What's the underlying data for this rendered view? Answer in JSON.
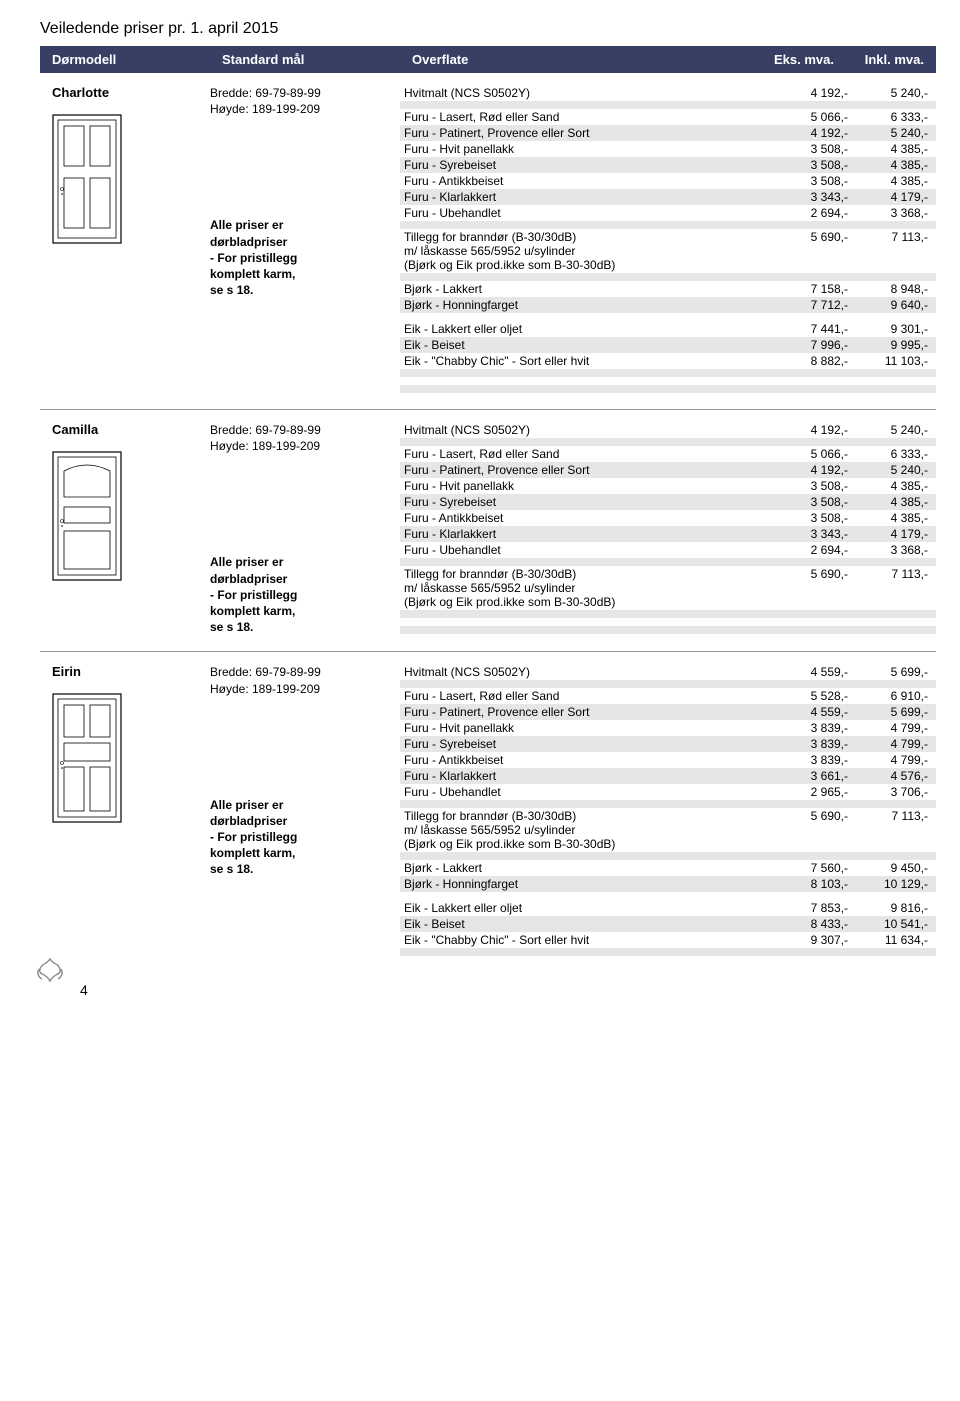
{
  "page_title": "Veiledende priser pr. 1. april 2015",
  "page_number": "4",
  "header": {
    "c1": "Dørmodell",
    "c2": "Standard mål",
    "c3": "Overflate",
    "c4": "Eks. mva.",
    "c5": "Inkl. mva."
  },
  "note_text_bold": "Alle priser er\ndørbladpriser\n- For pristillegg\nkomplett karm,\nse s 18.",
  "dims_text": "Bredde: 69-79-89-99\nHøyde: 189-199-209",
  "sections": [
    {
      "model": "Charlotte",
      "door_type": "charlotte",
      "rows": [
        {
          "label": "Hvitmalt  (NCS S0502Y)",
          "p1": "4 192,-",
          "p2": "5 240,-",
          "striped": false
        },
        {
          "spacer": true,
          "striped": true
        },
        {
          "label": "Furu - Lasert, Rød eller Sand",
          "p1": "5 066,-",
          "p2": "6 333,-",
          "striped": false
        },
        {
          "label": "Furu - Patinert, Provence eller Sort",
          "p1": "4 192,-",
          "p2": "5 240,-",
          "striped": true
        },
        {
          "label": "Furu - Hvit panellakk",
          "p1": "3 508,-",
          "p2": "4 385,-",
          "striped": false
        },
        {
          "label": "Furu - Syrebeiset",
          "p1": "3 508,-",
          "p2": "4 385,-",
          "striped": true
        },
        {
          "label": "Furu - Antikkbeiset",
          "p1": "3 508,-",
          "p2": "4 385,-",
          "striped": false
        },
        {
          "label": "Furu - Klarlakkert",
          "p1": "3 343,-",
          "p2": "4 179,-",
          "striped": true
        },
        {
          "label": "Furu - Ubehandlet",
          "p1": "2 694,-",
          "p2": "3 368,-",
          "striped": false
        },
        {
          "spacer": true,
          "striped": true
        },
        {
          "label": "Tillegg for branndør  (B-30/30dB)\nm/ låskasse 565/5952 u/sylinder\n(Bjørk og Eik prod.ikke som B-30-30dB)",
          "p1": "5 690,-",
          "p2": "7 113,-",
          "striped": false,
          "multi": true
        },
        {
          "spacer": true,
          "striped": true
        },
        {
          "label": "Bjørk - Lakkert",
          "p1": "7 158,-",
          "p2": "8 948,-",
          "striped": false
        },
        {
          "label": "Bjørk - Honningfarget",
          "p1": "7 712,-",
          "p2": "9 640,-",
          "striped": true
        },
        {
          "spacer": true,
          "striped": false
        },
        {
          "label": "Eik - Lakkert eller oljet",
          "p1": "7 441,-",
          "p2": "9 301,-",
          "striped": false
        },
        {
          "label": "Eik - Beiset",
          "p1": "7 996,-",
          "p2": "9 995,-",
          "striped": true
        },
        {
          "label": "Eik - \"Chabby Chic\" - Sort eller hvit",
          "p1": "8 882,-",
          "p2": "11 103,-",
          "striped": false
        },
        {
          "spacer": true,
          "striped": true
        },
        {
          "spacer": true,
          "striped": false
        },
        {
          "spacer": true,
          "striped": true
        }
      ]
    },
    {
      "model": "Camilla",
      "door_type": "camilla",
      "rows": [
        {
          "label": "Hvitmalt (NCS S0502Y)",
          "p1": "4 192,-",
          "p2": "5 240,-",
          "striped": false
        },
        {
          "spacer": true,
          "striped": true
        },
        {
          "label": "Furu - Lasert, Rød eller Sand",
          "p1": "5 066,-",
          "p2": "6 333,-",
          "striped": false
        },
        {
          "label": "Furu - Patinert, Provence eller Sort",
          "p1": "4 192,-",
          "p2": "5 240,-",
          "striped": true
        },
        {
          "label": "Furu - Hvit panellakk",
          "p1": "3 508,-",
          "p2": "4 385,-",
          "striped": false
        },
        {
          "label": "Furu - Syrebeiset",
          "p1": "3 508,-",
          "p2": "4 385,-",
          "striped": true
        },
        {
          "label": "Furu - Antikkbeiset",
          "p1": "3 508,-",
          "p2": "4 385,-",
          "striped": false
        },
        {
          "label": "Furu - Klarlakkert",
          "p1": "3 343,-",
          "p2": "4 179,-",
          "striped": true
        },
        {
          "label": "Furu - Ubehandlet",
          "p1": "2 694,-",
          "p2": "3 368,-",
          "striped": false
        },
        {
          "spacer": true,
          "striped": true
        },
        {
          "label": "Tillegg for branndør  (B-30/30dB)\nm/ låskasse 565/5952 u/sylinder\n(Bjørk og Eik prod.ikke som B-30-30dB)",
          "p1": "5 690,-",
          "p2": "7 113,-",
          "striped": false,
          "multi": true
        },
        {
          "spacer": true,
          "striped": true
        },
        {
          "spacer": true,
          "striped": false
        },
        {
          "spacer": true,
          "striped": true
        }
      ]
    },
    {
      "model": "Eirin",
      "door_type": "eirin",
      "rows": [
        {
          "label": "Hvitmalt (NCS S0502Y)",
          "p1": "4 559,-",
          "p2": "5 699,-",
          "striped": false
        },
        {
          "spacer": true,
          "striped": true
        },
        {
          "label": "Furu - Lasert, Rød eller Sand",
          "p1": "5 528,-",
          "p2": "6 910,-",
          "striped": false
        },
        {
          "label": "Furu - Patinert, Provence eller Sort",
          "p1": "4 559,-",
          "p2": "5 699,-",
          "striped": true
        },
        {
          "label": "Furu - Hvit panellakk",
          "p1": "3 839,-",
          "p2": "4 799,-",
          "striped": false
        },
        {
          "label": "Furu - Syrebeiset",
          "p1": "3 839,-",
          "p2": "4 799,-",
          "striped": true
        },
        {
          "label": "Furu - Antikkbeiset",
          "p1": "3 839,-",
          "p2": "4 799,-",
          "striped": false
        },
        {
          "label": "Furu - Klarlakkert",
          "p1": "3 661,-",
          "p2": "4 576,-",
          "striped": true
        },
        {
          "label": "Furu - Ubehandlet",
          "p1": "2 965,-",
          "p2": "3 706,-",
          "striped": false
        },
        {
          "spacer": true,
          "striped": true
        },
        {
          "label": "Tillegg for branndør (B-30/30dB)\nm/ låskasse 565/5952 u/sylinder\n(Bjørk og Eik prod.ikke som B-30-30dB)",
          "p1": "5 690,-",
          "p2": "7 113,-",
          "striped": false,
          "multi": true
        },
        {
          "spacer": true,
          "striped": true
        },
        {
          "label": "Bjørk - Lakkert",
          "p1": "7 560,-",
          "p2": "9 450,-",
          "striped": false
        },
        {
          "label": "Bjørk - Honningfarget",
          "p1": "8 103,-",
          "p2": "10 129,-",
          "striped": true
        },
        {
          "spacer": true,
          "striped": false
        },
        {
          "label": "Eik - Lakkert eller oljet",
          "p1": "7 853,-",
          "p2": "9 816,-",
          "striped": false
        },
        {
          "label": "Eik - Beiset",
          "p1": "8 433,-",
          "p2": "10 541,-",
          "striped": true
        },
        {
          "label": "Eik - \"Chabby Chic\" - Sort eller hvit",
          "p1": "9 307,-",
          "p2": "11 634,-",
          "striped": false
        },
        {
          "spacer": true,
          "striped": true
        }
      ]
    }
  ]
}
